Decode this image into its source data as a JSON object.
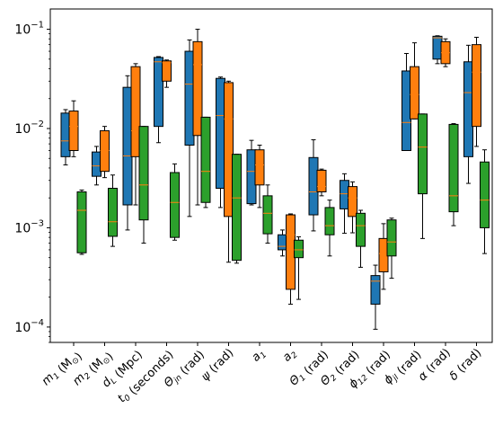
{
  "chart_data": {
    "type": "boxplot",
    "yscale": "log",
    "ylim": [
      7e-05,
      0.16
    ],
    "y_tick_labels": [
      {
        "value": 0.0001,
        "base": "10",
        "exp": "−4"
      },
      {
        "value": 0.001,
        "base": "10",
        "exp": "−3"
      },
      {
        "value": 0.01,
        "base": "10",
        "exp": "−2"
      },
      {
        "value": 0.1,
        "base": "10",
        "exp": "−1"
      }
    ],
    "categories": [
      {
        "label": "m",
        "sub": "1",
        "unit": " (M",
        "unit_sub": "⊙",
        "tail": ")"
      },
      {
        "label": "m",
        "sub": "2",
        "unit": " (M",
        "unit_sub": "⊙",
        "tail": ")"
      },
      {
        "label": "d",
        "sub": "L",
        "unit": " (Mpc)",
        "unit_sub": "",
        "tail": ""
      },
      {
        "label": "t",
        "sub": "0",
        "unit": " (seconds)",
        "unit_sub": "",
        "tail": ""
      },
      {
        "label": "Θ",
        "sub": "jn",
        "unit": " (rad)",
        "unit_sub": "",
        "tail": ""
      },
      {
        "label": "ψ",
        "sub": "",
        "unit": " (rad)",
        "unit_sub": "",
        "tail": ""
      },
      {
        "label": "a",
        "sub": "1",
        "unit": "",
        "unit_sub": "",
        "tail": ""
      },
      {
        "label": "a",
        "sub": "2",
        "unit": "",
        "unit_sub": "",
        "tail": ""
      },
      {
        "label": "Θ",
        "sub": "1",
        "unit": " (rad)",
        "unit_sub": "",
        "tail": ""
      },
      {
        "label": "Θ",
        "sub": "2",
        "unit": " (rad)",
        "unit_sub": "",
        "tail": ""
      },
      {
        "label": "ϕ",
        "sub": "12",
        "unit": " (rad)",
        "unit_sub": "",
        "tail": ""
      },
      {
        "label": "ϕ",
        "sub": "jl",
        "unit": " (rad)",
        "unit_sub": "",
        "tail": ""
      },
      {
        "label": "α",
        "sub": "",
        "unit": " (rad)",
        "unit_sub": "",
        "tail": ""
      },
      {
        "label": "δ",
        "sub": "",
        "unit": " (rad)",
        "unit_sub": "",
        "tail": ""
      }
    ],
    "series": [
      {
        "color": "#1f77b4",
        "boxes": [
          {
            "whislo": 0.0043,
            "q1": 0.0052,
            "med": 0.0075,
            "q3": 0.0143,
            "whishi": 0.0155
          },
          {
            "whislo": 0.0027,
            "q1": 0.0033,
            "med": 0.0042,
            "q3": 0.0058,
            "whishi": 0.0066
          },
          {
            "whislo": 0.00095,
            "q1": 0.0017,
            "med": 0.0053,
            "q3": 0.026,
            "whishi": 0.034
          },
          {
            "whislo": 0.0072,
            "q1": 0.0105,
            "med": 0.047,
            "q3": 0.052,
            "whishi": 0.053
          },
          {
            "whislo": 0.0013,
            "q1": 0.0068,
            "med": 0.028,
            "q3": 0.06,
            "whishi": 0.078
          },
          {
            "whislo": 0.0016,
            "q1": 0.0025,
            "med": 0.0135,
            "q3": 0.032,
            "whishi": 0.033
          },
          {
            "whislo": 0.0017,
            "q1": 0.00175,
            "med": 0.0037,
            "q3": 0.0061,
            "whishi": 0.0076
          },
          {
            "whislo": 0.00052,
            "q1": 0.0006,
            "med": 0.00065,
            "q3": 0.00085,
            "whishi": 0.00095
          },
          {
            "whislo": 0.00093,
            "q1": 0.00135,
            "med": 0.0023,
            "q3": 0.0051,
            "whishi": 0.0077
          },
          {
            "whislo": 0.00088,
            "q1": 0.00155,
            "med": 0.0022,
            "q3": 0.003,
            "whishi": 0.0035
          },
          {
            "whislo": 9.5e-05,
            "q1": 0.00017,
            "med": 0.00029,
            "q3": 0.00033,
            "whishi": 0.00042
          },
          {
            "whislo": 0.006,
            "q1": 0.006,
            "med": 0.0115,
            "q3": 0.038,
            "whishi": 0.057
          },
          {
            "whislo": 0.045,
            "q1": 0.05,
            "med": 0.082,
            "q3": 0.085,
            "whishi": 0.086
          },
          {
            "whislo": 0.0028,
            "q1": 0.0052,
            "med": 0.023,
            "q3": 0.047,
            "whishi": 0.069
          }
        ]
      },
      {
        "color": "#ff7f0e",
        "boxes": [
          {
            "whislo": 0.0052,
            "q1": 0.006,
            "med": 0.0105,
            "q3": 0.015,
            "whishi": 0.019
          },
          {
            "whislo": 0.0032,
            "q1": 0.0037,
            "med": 0.006,
            "q3": 0.0095,
            "whishi": 0.0105
          },
          {
            "whislo": 0.0017,
            "q1": 0.0052,
            "med": 0.0095,
            "q3": 0.042,
            "whishi": 0.045
          },
          {
            "whislo": 0.026,
            "q1": 0.03,
            "med": 0.046,
            "q3": 0.048,
            "whishi": 0.049
          },
          {
            "whislo": 0.0017,
            "q1": 0.0085,
            "med": 0.044,
            "q3": 0.075,
            "whishi": 0.1
          },
          {
            "whislo": 0.00045,
            "q1": 0.0013,
            "med": 0.0125,
            "q3": 0.029,
            "whishi": 0.03
          },
          {
            "whislo": 0.0016,
            "q1": 0.0027,
            "med": 0.0043,
            "q3": 0.0061,
            "whishi": 0.0068
          },
          {
            "whislo": 0.00017,
            "q1": 0.00024,
            "med": 0.00085,
            "q3": 0.00135,
            "whishi": 0.00138
          },
          {
            "whislo": 0.0021,
            "q1": 0.0023,
            "med": 0.0026,
            "q3": 0.0038,
            "whishi": 0.0039
          },
          {
            "whislo": 0.00089,
            "q1": 0.0013,
            "med": 0.002,
            "q3": 0.0026,
            "whishi": 0.0029
          },
          {
            "whislo": 0.00024,
            "q1": 0.00036,
            "med": 0.00055,
            "q3": 0.00078,
            "whishi": 0.0011
          },
          {
            "whislo": 0.0125,
            "q1": 0.0125,
            "med": 0.022,
            "q3": 0.042,
            "whishi": 0.073
          },
          {
            "whislo": 0.042,
            "q1": 0.045,
            "med": 0.058,
            "q3": 0.075,
            "whishi": 0.08
          },
          {
            "whislo": 0.0066,
            "q1": 0.0105,
            "med": 0.037,
            "q3": 0.07,
            "whishi": 0.083
          }
        ]
      },
      {
        "color": "#2ca02c",
        "boxes": [
          {
            "whislo": 0.00054,
            "q1": 0.00056,
            "med": 0.0015,
            "q3": 0.0023,
            "whishi": 0.0024
          },
          {
            "whislo": 0.00065,
            "q1": 0.00082,
            "med": 0.00115,
            "q3": 0.0025,
            "whishi": 0.0034
          },
          {
            "whislo": 0.0007,
            "q1": 0.0012,
            "med": 0.0027,
            "q3": 0.0105,
            "whishi": 0.0105
          },
          {
            "whislo": 0.00075,
            "q1": 0.0008,
            "med": 0.0018,
            "q3": 0.0036,
            "whishi": 0.0044
          },
          {
            "whislo": 0.0016,
            "q1": 0.0018,
            "med": 0.0037,
            "q3": 0.013,
            "whishi": 0.013
          },
          {
            "whislo": 0.00044,
            "q1": 0.00047,
            "med": 0.002,
            "q3": 0.0055,
            "whishi": 0.0055
          },
          {
            "whislo": 0.0007,
            "q1": 0.00087,
            "med": 0.0014,
            "q3": 0.0021,
            "whishi": 0.0027
          },
          {
            "whislo": 0.00019,
            "q1": 0.0005,
            "med": 0.0006,
            "q3": 0.00075,
            "whishi": 0.00081
          },
          {
            "whislo": 0.00052,
            "q1": 0.00085,
            "med": 0.00105,
            "q3": 0.0016,
            "whishi": 0.0019
          },
          {
            "whislo": 0.0004,
            "q1": 0.00065,
            "med": 0.00105,
            "q3": 0.0014,
            "whishi": 0.0015
          },
          {
            "whislo": 0.00031,
            "q1": 0.00052,
            "med": 0.00072,
            "q3": 0.0012,
            "whishi": 0.00125
          },
          {
            "whislo": 0.00078,
            "q1": 0.0022,
            "med": 0.0065,
            "q3": 0.014,
            "whishi": 0.014
          },
          {
            "whislo": 0.00105,
            "q1": 0.00145,
            "med": 0.0021,
            "q3": 0.011,
            "whishi": 0.0112
          },
          {
            "whislo": 0.00055,
            "q1": 0.001,
            "med": 0.0019,
            "q3": 0.0046,
            "whishi": 0.0061
          }
        ]
      }
    ],
    "grid": false,
    "legend": "none"
  }
}
